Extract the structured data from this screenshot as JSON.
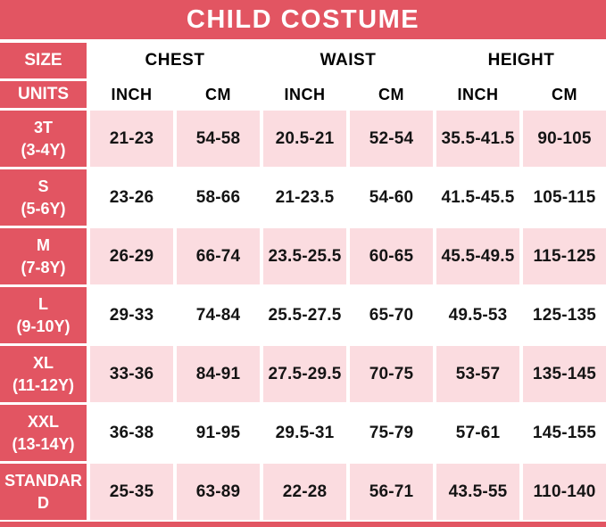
{
  "title": "CHILD COSTUME",
  "colors": {
    "red": "#e25562",
    "pink": "#fbdce0",
    "text": "#141414",
    "header_text": "#ffffff"
  },
  "header": {
    "size_label": "SIZE",
    "units_label": "UNITS",
    "groups": [
      "CHEST",
      "WAIST",
      "HEIGHT"
    ],
    "units": [
      "INCH",
      "CM",
      "INCH",
      "CM",
      "INCH",
      "CM"
    ]
  },
  "chart_data": {
    "type": "table",
    "title": "CHILD COSTUME",
    "column_groups": [
      "CHEST",
      "WAIST",
      "HEIGHT"
    ],
    "columns": [
      "SIZE",
      "CHEST INCH",
      "CHEST CM",
      "WAIST INCH",
      "WAIST CM",
      "HEIGHT INCH",
      "HEIGHT CM"
    ],
    "rows": [
      {
        "size": "3T",
        "age": "(3-4Y)",
        "values": [
          "21-23",
          "54-58",
          "20.5-21",
          "52-54",
          "35.5-41.5",
          "90-105"
        ]
      },
      {
        "size": "S",
        "age": "(5-6Y)",
        "values": [
          "23-26",
          "58-66",
          "21-23.5",
          "54-60",
          "41.5-45.5",
          "105-115"
        ]
      },
      {
        "size": "M",
        "age": "(7-8Y)",
        "values": [
          "26-29",
          "66-74",
          "23.5-25.5",
          "60-65",
          "45.5-49.5",
          "115-125"
        ]
      },
      {
        "size": "L",
        "age": "(9-10Y)",
        "values": [
          "29-33",
          "74-84",
          "25.5-27.5",
          "65-70",
          "49.5-53",
          "125-135"
        ]
      },
      {
        "size": "XL",
        "age": "(11-12Y)",
        "values": [
          "33-36",
          "84-91",
          "27.5-29.5",
          "70-75",
          "53-57",
          "135-145"
        ]
      },
      {
        "size": "XXL",
        "age": "(13-14Y)",
        "values": [
          "36-38",
          "91-95",
          "29.5-31",
          "75-79",
          "57-61",
          "145-155"
        ]
      },
      {
        "size": "STANDARD",
        "age": "",
        "values": [
          "25-35",
          "63-89",
          "22-28",
          "56-71",
          "43.5-55",
          "110-140"
        ]
      }
    ]
  }
}
